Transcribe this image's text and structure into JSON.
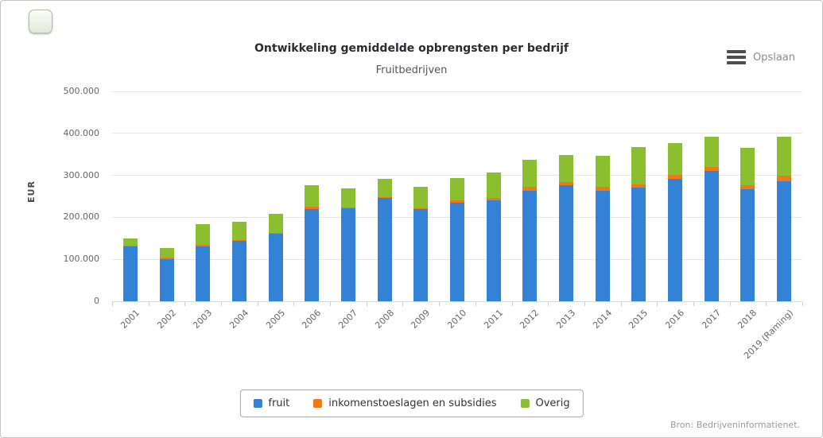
{
  "header": {
    "export_label": "Opslaan"
  },
  "chart_data": {
    "type": "bar",
    "stacked": true,
    "title": "Ontwikkeling gemiddelde opbrengsten per bedrijf",
    "subtitle": "Fruitbedrijven",
    "xlabel": "",
    "ylabel": "EUR",
    "ylim": [
      0,
      500000
    ],
    "grid": true,
    "legend_position": "bottom",
    "yticks": [
      0,
      100000,
      200000,
      300000,
      400000,
      500000
    ],
    "ytick_labels": [
      "0",
      "100.000",
      "200.000",
      "300.000",
      "400.000",
      "500.000"
    ],
    "categories": [
      "2001",
      "2002",
      "2003",
      "2004",
      "2005",
      "2006",
      "2007",
      "2008",
      "2009",
      "2010",
      "2011",
      "2012",
      "2013",
      "2014",
      "2015",
      "2016",
      "2017",
      "2018",
      "2019 (Raming)"
    ],
    "series": [
      {
        "name": "fruit",
        "color": "#3382d5",
        "values": [
          130000,
          101000,
          130000,
          144000,
          161000,
          220000,
          221000,
          246000,
          220000,
          235000,
          241000,
          263000,
          276000,
          264000,
          270000,
          292000,
          311000,
          267000,
          286000
        ]
      },
      {
        "name": "inkomenstoeslagen en subsidies",
        "color": "#ed7a18",
        "values": [
          2000,
          4000,
          4000,
          2000,
          2000,
          5000,
          2000,
          2000,
          2000,
          5000,
          6000,
          9000,
          9000,
          8000,
          8000,
          9000,
          10000,
          9000,
          14000
        ]
      },
      {
        "name": "Overig",
        "color": "#8cbf2f",
        "values": [
          18000,
          22000,
          50000,
          44000,
          46000,
          52000,
          45000,
          43000,
          51000,
          54000,
          59000,
          65000,
          63000,
          75000,
          90000,
          75000,
          71000,
          89000,
          92000
        ]
      }
    ]
  },
  "footer": {
    "source": "Bron: Bedrijveninformatienet."
  }
}
